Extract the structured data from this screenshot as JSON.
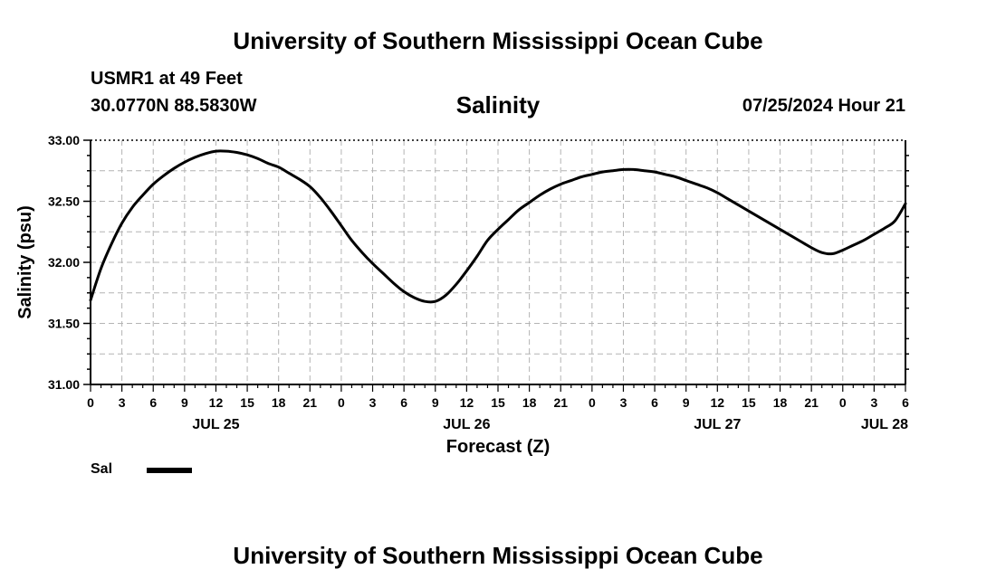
{
  "header": {
    "top_title": "University of Southern Mississippi Ocean Cube",
    "station": "USMR1 at 49 Feet",
    "coords": "30.0770N  88.5830W",
    "chart_title": "Salinity",
    "datetime": "07/25/2024 Hour 21",
    "bottom_title": "University of Southern Mississippi Ocean Cube"
  },
  "legend": {
    "label": "Sal"
  },
  "chart_data": {
    "type": "line",
    "title": "Salinity",
    "xlabel": "Forecast (Z)",
    "ylabel": "Salinity (psu)",
    "ylim": [
      31.0,
      33.0
    ],
    "xlim": [
      0,
      78
    ],
    "y_ticks": [
      "31.00",
      "31.50",
      "32.00",
      "32.50",
      "33.00"
    ],
    "x_tick_labels": [
      "0",
      "3",
      "6",
      "9",
      "12",
      "15",
      "18",
      "21",
      "0",
      "3",
      "6",
      "9",
      "12",
      "15",
      "18",
      "21",
      "0",
      "3",
      "6",
      "9",
      "12",
      "15",
      "18",
      "21",
      "0",
      "3",
      "6"
    ],
    "day_labels": [
      {
        "label": "JUL 25",
        "hour": 12
      },
      {
        "label": "JUL 26",
        "hour": 36
      },
      {
        "label": "JUL 27",
        "hour": 60
      },
      {
        "label": "JUL 28",
        "hour": 76
      }
    ],
    "grid": true,
    "series": [
      {
        "name": "Sal",
        "color": "#000000",
        "x": [
          0,
          1,
          2,
          3,
          4,
          5,
          6,
          7,
          8,
          9,
          10,
          11,
          12,
          13,
          14,
          15,
          16,
          17,
          18,
          19,
          20,
          21,
          22,
          23,
          24,
          25,
          26,
          27,
          28,
          29,
          30,
          31,
          32,
          33,
          34,
          35,
          36,
          37,
          38,
          39,
          40,
          41,
          42,
          43,
          44,
          45,
          46,
          47,
          48,
          49,
          50,
          51,
          52,
          53,
          54,
          55,
          56,
          57,
          58,
          59,
          60,
          61,
          62,
          63,
          64,
          65,
          66,
          67,
          68,
          69,
          70,
          71,
          72,
          73,
          74,
          75,
          76,
          77,
          78
        ],
        "values": [
          31.69,
          31.95,
          32.15,
          32.32,
          32.45,
          32.55,
          32.64,
          32.71,
          32.77,
          32.82,
          32.86,
          32.89,
          32.91,
          32.91,
          32.9,
          32.88,
          32.85,
          32.81,
          32.78,
          32.73,
          32.68,
          32.62,
          32.53,
          32.42,
          32.3,
          32.18,
          32.08,
          31.99,
          31.91,
          31.83,
          31.76,
          31.71,
          31.68,
          31.68,
          31.73,
          31.82,
          31.93,
          32.05,
          32.18,
          32.27,
          32.35,
          32.43,
          32.49,
          32.55,
          32.6,
          32.64,
          32.67,
          32.7,
          32.72,
          32.74,
          32.75,
          32.76,
          32.76,
          32.75,
          32.74,
          32.72,
          32.7,
          32.67,
          32.64,
          32.61,
          32.57,
          32.52,
          32.47,
          32.42,
          32.37,
          32.32,
          32.27,
          32.22,
          32.17,
          32.12,
          32.08,
          32.07,
          32.1,
          32.14,
          32.18,
          32.23,
          32.28,
          32.34,
          32.48
        ]
      }
    ]
  }
}
